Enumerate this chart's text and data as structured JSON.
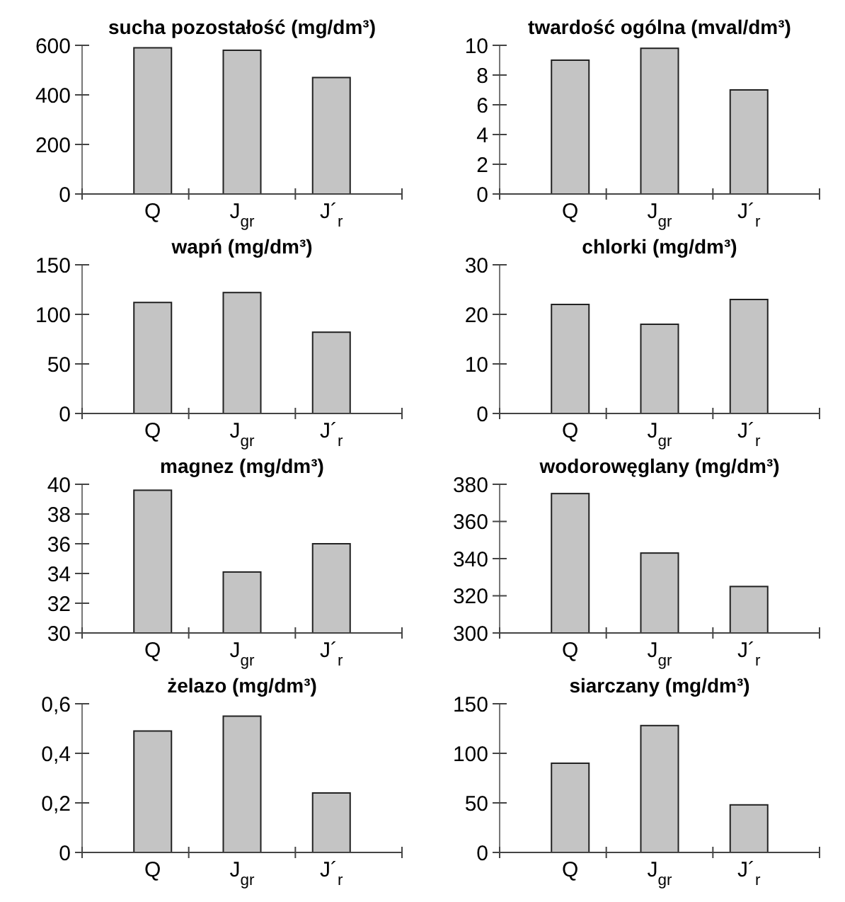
{
  "chart_data": [
    {
      "type": "bar",
      "title": "sucha pozostałość (mg/dm³)",
      "categories": [
        "Q",
        "J$_{gr}$",
        "J´$_{r}$"
      ],
      "values": [
        590,
        580,
        470
      ],
      "color": "#c4c4c4",
      "ylim": [
        0,
        600
      ],
      "yticks": [
        0,
        200,
        400,
        600
      ],
      "grid": false
    },
    {
      "type": "bar",
      "title": "twardość ogólna (mval/dm³)",
      "categories": [
        "Q",
        "J$_{gr}$",
        "J´$_{r}$"
      ],
      "values": [
        9,
        9.8,
        7
      ],
      "color": "#c4c4c4",
      "ylim": [
        0,
        10
      ],
      "yticks": [
        0,
        2,
        4,
        6,
        8,
        10
      ],
      "grid": false
    },
    {
      "type": "bar",
      "title": "wapń (mg/dm³)",
      "categories": [
        "Q",
        "J$_{gr}$",
        "J´$_{r}$"
      ],
      "values": [
        112,
        122,
        82
      ],
      "color": "#c4c4c4",
      "ylim": [
        0,
        150
      ],
      "yticks": [
        0,
        50,
        100,
        150
      ],
      "grid": false
    },
    {
      "type": "bar",
      "title": "chlorki (mg/dm³)",
      "categories": [
        "Q",
        "J$_{gr}$",
        "J´$_{r}$"
      ],
      "values": [
        22,
        18,
        23
      ],
      "color": "#c4c4c4",
      "ylim": [
        0,
        30
      ],
      "yticks": [
        0,
        10,
        20,
        30
      ],
      "grid": false
    },
    {
      "type": "bar",
      "title": "magnez (mg/dm³)",
      "categories": [
        "Q",
        "J$_{gr}$",
        "J´$_{r}$"
      ],
      "values": [
        39.6,
        34.1,
        36
      ],
      "color": "#c4c4c4",
      "ylim": [
        30,
        40
      ],
      "yticks": [
        30,
        32,
        34,
        36,
        38,
        40
      ],
      "grid": false
    },
    {
      "type": "bar",
      "title": "wodorowęglany (mg/dm³)",
      "categories": [
        "Q",
        "J$_{gr}$",
        "J´$_{r}$"
      ],
      "values": [
        375,
        343,
        325
      ],
      "color": "#c4c4c4",
      "ylim": [
        300,
        380
      ],
      "yticks": [
        300,
        320,
        340,
        360,
        380
      ],
      "grid": false
    },
    {
      "type": "bar",
      "title": "żelazo (mg/dm³)",
      "categories": [
        "Q",
        "J$_{gr}$",
        "J´$_{r}$"
      ],
      "values": [
        0.49,
        0.55,
        0.24
      ],
      "color": "#c4c4c4",
      "ylim": [
        0,
        0.6
      ],
      "yticks": [
        0,
        {
          "value": 0.2,
          "label": "0,2"
        },
        {
          "value": 0.4,
          "label": "0,4"
        },
        {
          "value": 0.6,
          "label": "0,6"
        }
      ],
      "grid": false
    },
    {
      "type": "bar",
      "title": "siarczany (mg/dm³)",
      "categories": [
        "Q",
        "J$_{gr}$",
        "J´$_{r}$"
      ],
      "values": [
        90,
        128,
        48
      ],
      "color": "#c4c4c4",
      "ylim": [
        0,
        150
      ],
      "yticks": [
        0,
        50,
        100,
        150
      ],
      "grid": false
    }
  ]
}
